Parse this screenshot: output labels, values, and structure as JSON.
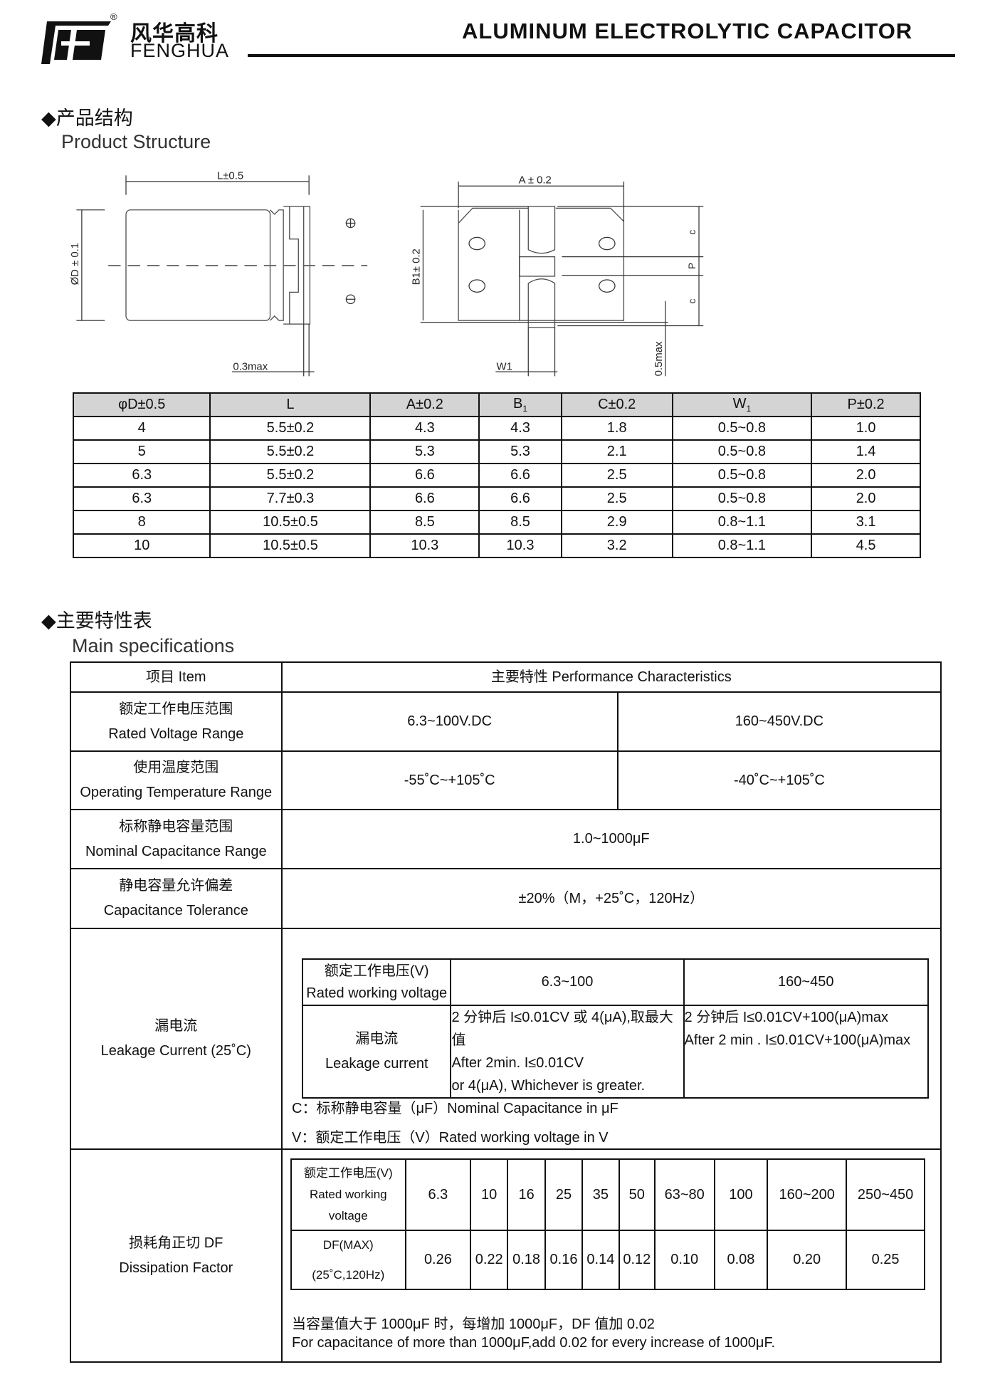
{
  "header": {
    "brand_cn": "风华高科",
    "brand_en": "FENGHUA",
    "registered": "®",
    "title": "ALUMINUM ELECTROLYTIC CAPACITOR"
  },
  "structure": {
    "heading_cn": "◆产品结构",
    "heading_en": "Product Structure",
    "diagram_labels": {
      "L": "L±0.5",
      "A": "A ± 0.2",
      "D": "ØD ± 0.1",
      "B1": "B1± 0.2",
      "c_top": "c",
      "P": "P",
      "c_bottom": "c",
      "max03": "0.3max",
      "W1": "W1",
      "max05": "0.5max"
    },
    "table": {
      "headers": [
        "φD±0.5",
        "L",
        "A±0.2",
        "B",
        "C±0.2",
        "W",
        "P±0.2"
      ],
      "header_subscripts": {
        "3": "1",
        "5": "1"
      },
      "rows": [
        [
          "4",
          "5.5±0.2",
          "4.3",
          "4.3",
          "1.8",
          "0.5~0.8",
          "1.0"
        ],
        [
          "5",
          "5.5±0.2",
          "5.3",
          "5.3",
          "2.1",
          "0.5~0.8",
          "1.4"
        ],
        [
          "6.3",
          "5.5±0.2",
          "6.6",
          "6.6",
          "2.5",
          "0.5~0.8",
          "2.0"
        ],
        [
          "6.3",
          "7.7±0.3",
          "6.6",
          "6.6",
          "2.5",
          "0.5~0.8",
          "2.0"
        ],
        [
          "8",
          "10.5±0.5",
          "8.5",
          "8.5",
          "2.9",
          "0.8~1.1",
          "3.1"
        ],
        [
          "10",
          "10.5±0.5",
          "10.3",
          "10.3",
          "3.2",
          "0.8~1.1",
          "4.5"
        ]
      ]
    }
  },
  "specs": {
    "heading_cn": "◆主要特性表",
    "heading_en": "Main specifications",
    "col_item": "项目 Item",
    "col_perf": "主要特性 Performance Characteristics",
    "rows": [
      {
        "cn": "额定工作电压范围",
        "en": "Rated Voltage Range",
        "v1": "6.3~100V.DC",
        "v2": "160~450V.DC"
      },
      {
        "cn": "使用温度范围",
        "en": "Operating Temperature Range",
        "v1": "-55˚C~+105˚C",
        "v2": "-40˚C~+105˚C"
      },
      {
        "cn": "标称静电容量范围",
        "en": "Nominal Capacitance Range",
        "v": "1.0~1000μF"
      },
      {
        "cn": "静电容量允许偏差",
        "en": "Capacitance Tolerance",
        "v": "±20%（M，+25˚C，120Hz）"
      }
    ],
    "leakage": {
      "cn": "漏电流",
      "en": "Leakage Current (25˚C)",
      "voltage_cn": "额定工作电压(V)",
      "voltage_en": "Rated working voltage",
      "range1": "6.3~100",
      "range2": "160~450",
      "current_cn": "漏电流",
      "current_en": "Leakage current",
      "r1_lines": [
        "2 分钟后 I≤0.01CV 或 4(μA),取最大值",
        "After 2min. I≤0.01CV",
        "or 4(μA), Whichever is greater."
      ],
      "r2_lines": [
        "2 分钟后 I≤0.01CV+100(μA)max",
        "After 2 min . I≤0.01CV+100(μA)max"
      ],
      "note_c": "C：标称静电容量（μF）Nominal Capacitance in μF",
      "note_v": "V：额定工作电压（V）Rated working voltage in V"
    },
    "df": {
      "cn": "损耗角正切 DF",
      "en": "Dissipation Factor",
      "voltage_label": [
        "额定工作电压(V)",
        "Rated working",
        "voltage"
      ],
      "df_label": [
        "DF(MAX)",
        "(25˚C,120Hz)"
      ],
      "voltages": [
        "6.3",
        "10",
        "16",
        "25",
        "35",
        "50",
        "63~80",
        "100",
        "160~200",
        "250~450"
      ],
      "values": [
        "0.26",
        "0.22",
        "0.18",
        "0.16",
        "0.14",
        "0.12",
        "0.10",
        "0.08",
        "0.20",
        "0.25"
      ],
      "note_cn": "当容量值大于 1000μF 时，每增加 1000μF，DF 值加 0.02",
      "note_en": "For capacitance of more than 1000μF,add 0.02 for every increase of 1000μF."
    }
  }
}
